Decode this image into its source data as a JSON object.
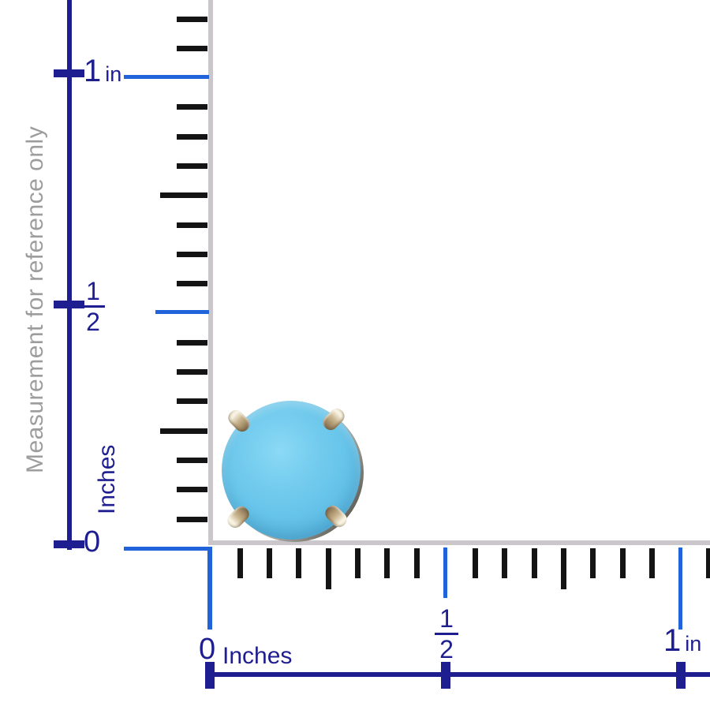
{
  "reference_note": "Measurement for reference only",
  "left_ruler": {
    "unit_label": "Inches",
    "one_label": "1",
    "one_unit": "in",
    "half_numerator": "1",
    "half_denominator": "2",
    "zero_label": "0"
  },
  "bottom_ruler": {
    "unit_label": "Inches",
    "zero_label": "0",
    "half_numerator": "1",
    "half_denominator": "2",
    "one_label": "1",
    "one_unit": "in"
  },
  "colors": {
    "ruler_navy": "#1e1e90",
    "guide_blue": "#2063da",
    "tick_black": "#141414",
    "frame_gray": "#cac6ca",
    "note_gray": "#9d9d9d",
    "stone_turquoise": "#6cc6ea",
    "prong_gold": "#cbb892",
    "rim_silver": "#8e8e86"
  },
  "subject": {
    "description": "Round turquoise cabochon stud earring in four-prong setting"
  }
}
